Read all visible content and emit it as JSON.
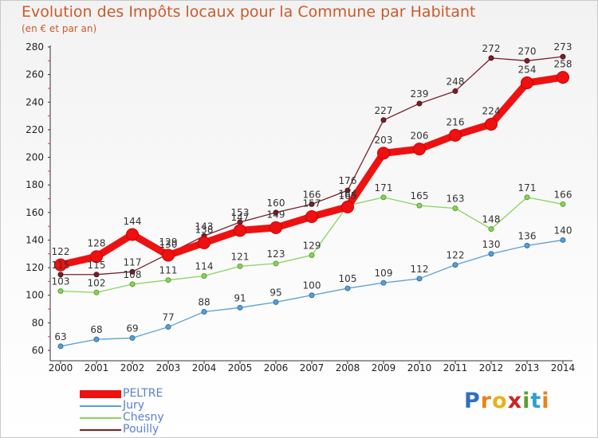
{
  "header": {
    "title": "Evolution des Impôts locaux pour la Commune par Habitant",
    "subtitle": "(en € et par an)"
  },
  "logo": {
    "text": "Proxiti"
  },
  "chart_data": {
    "type": "line",
    "title": "Evolution des Impôts locaux pour la Commune par Habitant",
    "subtitle": "(en € et par an)",
    "xlabel": "",
    "ylabel": "",
    "x": [
      2000,
      2001,
      2002,
      2003,
      2004,
      2005,
      2006,
      2007,
      2008,
      2009,
      2010,
      2011,
      2012,
      2013,
      2014
    ],
    "ylim": [
      60,
      280
    ],
    "yticks": [
      60,
      80,
      100,
      120,
      140,
      160,
      180,
      200,
      220,
      240,
      260,
      280
    ],
    "grid": false,
    "legend": "bottom-left",
    "series": [
      {
        "name": "Pouilly",
        "color": "#7a1f2a",
        "values": [
          115,
          115,
          117,
          130,
          143,
          153,
          160,
          166,
          176,
          227,
          239,
          248,
          272,
          270,
          273
        ]
      },
      {
        "name": "Chesny",
        "color": "#88d35c",
        "values": [
          103,
          102,
          108,
          111,
          114,
          121,
          123,
          129,
          165,
          171,
          165,
          163,
          148,
          171,
          166
        ]
      },
      {
        "name": "Jury",
        "color": "#5a9fd4",
        "values": [
          63,
          68,
          69,
          77,
          88,
          91,
          95,
          100,
          105,
          109,
          112,
          122,
          130,
          136,
          140
        ]
      },
      {
        "name": "PELTRE",
        "color": "#ee1111",
        "values": [
          122,
          128,
          144,
          129,
          138,
          147,
          149,
          157,
          164,
          203,
          206,
          216,
          224,
          254,
          258
        ]
      }
    ]
  }
}
